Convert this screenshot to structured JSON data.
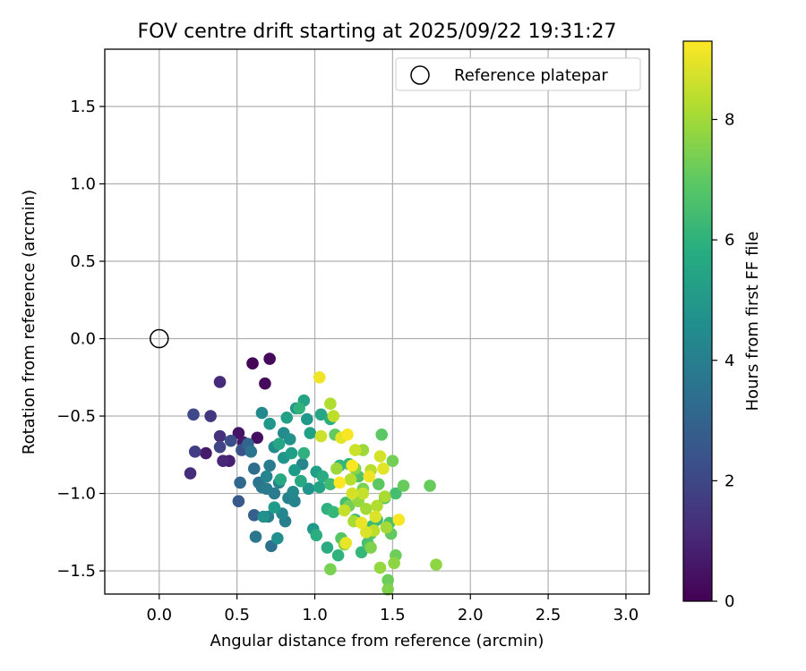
{
  "chart_data": {
    "type": "scatter",
    "title": "FOV centre drift starting at 2025/09/22 19:31:27",
    "xlabel": "Angular distance from reference (arcmin)",
    "ylabel": "Rotation from reference (arcmin)",
    "xlim": [
      -0.35,
      3.15
    ],
    "ylim": [
      -1.65,
      1.87
    ],
    "xticks": [
      "0.0",
      "0.5",
      "1.0",
      "1.5",
      "2.0",
      "2.5",
      "3.0"
    ],
    "yticks": [
      "−1.5",
      "−1.0",
      "−0.5",
      "0.0",
      "0.5",
      "1.0",
      "1.5"
    ],
    "grid": true,
    "legend": {
      "position": "top-right",
      "entries": [
        "Reference platepar"
      ]
    },
    "colorbar": {
      "label": "Hours from first FF file",
      "range": [
        0,
        9.3
      ],
      "ticks": [
        "0",
        "2",
        "4",
        "6",
        "8"
      ],
      "colormap": "viridis"
    },
    "reference_point": {
      "x": 0.0,
      "y": 0.0
    },
    "series": [
      {
        "points": [
          [
            0.6,
            -0.16,
            0.1
          ],
          [
            0.71,
            -0.13,
            0.2
          ],
          [
            0.68,
            -0.29,
            0.3
          ],
          [
            0.63,
            -0.64,
            0.4
          ],
          [
            0.51,
            -0.61,
            0.5
          ],
          [
            0.54,
            -0.67,
            0.6
          ],
          [
            0.3,
            -0.74,
            0.7
          ],
          [
            0.45,
            -0.79,
            0.8
          ],
          [
            0.58,
            -0.72,
            0.9
          ],
          [
            0.41,
            -0.79,
            1.0
          ],
          [
            0.39,
            -0.28,
            1.1
          ],
          [
            0.2,
            -0.87,
            1.2
          ],
          [
            0.39,
            -0.63,
            1.3
          ],
          [
            0.33,
            -0.5,
            1.5
          ],
          [
            0.23,
            -0.73,
            1.7
          ],
          [
            0.39,
            -0.7,
            1.9
          ],
          [
            0.22,
            -0.49,
            2.0
          ],
          [
            0.46,
            -0.66,
            2.2
          ],
          [
            0.53,
            -0.72,
            2.4
          ],
          [
            0.51,
            -1.05,
            2.6
          ],
          [
            0.61,
            -1.14,
            2.8
          ],
          [
            0.57,
            -0.68,
            3.0
          ],
          [
            0.52,
            -0.93,
            3.1
          ],
          [
            0.61,
            -0.84,
            3.3
          ],
          [
            0.72,
            -1.34,
            3.4
          ],
          [
            0.64,
            -0.93,
            3.5
          ],
          [
            0.59,
            -0.73,
            3.6
          ],
          [
            0.66,
            -0.96,
            3.7
          ],
          [
            0.62,
            -1.28,
            3.7
          ],
          [
            0.69,
            -0.97,
            3.8
          ],
          [
            0.71,
            -0.82,
            3.9
          ],
          [
            0.74,
            -1.0,
            3.9
          ],
          [
            0.81,
            -1.18,
            4.0
          ],
          [
            0.7,
            -1.15,
            4.0
          ],
          [
            0.77,
            -0.93,
            4.1
          ],
          [
            0.83,
            -1.03,
            4.1
          ],
          [
            0.69,
            -0.89,
            4.2
          ],
          [
            0.87,
            -1.05,
            4.2
          ],
          [
            0.79,
            -1.13,
            4.3
          ],
          [
            0.92,
            -0.81,
            4.3
          ],
          [
            0.86,
            -0.99,
            4.4
          ],
          [
            0.66,
            -0.48,
            4.4
          ],
          [
            0.74,
            -0.7,
            4.5
          ],
          [
            0.8,
            -0.61,
            4.5
          ],
          [
            0.76,
            -1.29,
            4.6
          ],
          [
            0.91,
            -0.92,
            4.6
          ],
          [
            0.67,
            -1.15,
            4.7
          ],
          [
            0.84,
            -0.65,
            4.7
          ],
          [
            0.96,
            -0.97,
            4.8
          ],
          [
            0.8,
            -0.77,
            4.8
          ],
          [
            0.71,
            -0.55,
            4.9
          ],
          [
            0.88,
            -0.45,
            4.9
          ],
          [
            0.99,
            -1.23,
            5.0
          ],
          [
            0.95,
            -0.52,
            5.0
          ],
          [
            0.74,
            -1.09,
            5.1
          ],
          [
            0.87,
            -0.85,
            5.1
          ],
          [
            1.01,
            -0.86,
            5.2
          ],
          [
            0.85,
            -0.74,
            5.2
          ],
          [
            0.97,
            -0.61,
            5.3
          ],
          [
            0.82,
            -0.51,
            5.3
          ],
          [
            0.93,
            -0.4,
            5.4
          ],
          [
            1.03,
            -0.96,
            5.4
          ],
          [
            0.77,
            -0.68,
            5.5
          ],
          [
            1.04,
            -0.49,
            5.5
          ],
          [
            0.91,
            -0.92,
            5.6
          ],
          [
            0.78,
            -0.91,
            5.6
          ],
          [
            1.08,
            -1.35,
            5.7
          ],
          [
            1.05,
            -0.89,
            5.7
          ],
          [
            1.1,
            -0.52,
            5.8
          ],
          [
            1.01,
            -1.27,
            5.8
          ],
          [
            0.93,
            -0.74,
            5.9
          ],
          [
            1.08,
            -1.1,
            5.9
          ],
          [
            1.15,
            -1.4,
            6.0
          ],
          [
            0.9,
            -0.45,
            6.0
          ],
          [
            1.16,
            -0.82,
            6.1
          ],
          [
            1.22,
            -0.81,
            6.1
          ],
          [
            1.12,
            -1.12,
            6.2
          ],
          [
            1.3,
            -1.38,
            6.2
          ],
          [
            1.37,
            -1.21,
            6.3
          ],
          [
            1.26,
            -1.17,
            6.3
          ],
          [
            1.4,
            -1.17,
            6.4
          ],
          [
            1.1,
            -0.94,
            6.4
          ],
          [
            1.2,
            -1.06,
            6.5
          ],
          [
            1.52,
            -1.0,
            6.5
          ],
          [
            1.48,
            -1.19,
            6.6
          ],
          [
            1.34,
            -1.32,
            6.6
          ],
          [
            1.28,
            -0.89,
            6.7
          ],
          [
            1.45,
            -1.03,
            6.7
          ],
          [
            1.17,
            -1.29,
            6.8
          ],
          [
            1.36,
            -1.26,
            6.8
          ],
          [
            1.43,
            -0.62,
            6.9
          ],
          [
            1.41,
            -0.94,
            6.9
          ],
          [
            1.13,
            -0.62,
            7.0
          ],
          [
            1.49,
            -1.26,
            7.0
          ],
          [
            1.74,
            -0.95,
            7.1
          ],
          [
            1.57,
            -0.95,
            7.1
          ],
          [
            1.47,
            -1.56,
            7.2
          ],
          [
            1.52,
            -1.4,
            7.2
          ],
          [
            1.5,
            -0.79,
            7.3
          ],
          [
            1.22,
            -1.08,
            7.3
          ],
          [
            1.1,
            -1.49,
            7.4
          ],
          [
            1.31,
            -0.97,
            7.4
          ],
          [
            1.36,
            -1.35,
            7.5
          ],
          [
            1.47,
            -1.62,
            7.5
          ],
          [
            1.19,
            -1.33,
            7.6
          ],
          [
            1.26,
            -0.84,
            7.6
          ],
          [
            1.51,
            -1.45,
            7.7
          ],
          [
            1.78,
            -1.46,
            7.7
          ],
          [
            1.42,
            -1.48,
            7.8
          ],
          [
            1.28,
            -1.05,
            7.8
          ],
          [
            1.31,
            -0.72,
            7.9
          ],
          [
            1.14,
            -0.84,
            7.9
          ],
          [
            1.46,
            -1.22,
            8.0
          ],
          [
            1.33,
            -1.1,
            8.0
          ],
          [
            1.45,
            -1.02,
            8.1
          ],
          [
            1.25,
            -1.18,
            8.1
          ],
          [
            1.4,
            -1.08,
            8.2
          ],
          [
            1.1,
            -0.42,
            8.2
          ],
          [
            1.23,
            -0.91,
            8.3
          ],
          [
            1.36,
            -0.85,
            8.3
          ],
          [
            1.12,
            -0.5,
            8.4
          ],
          [
            1.38,
            -1.24,
            8.4
          ],
          [
            1.19,
            -1.11,
            8.5
          ],
          [
            1.31,
            -1.0,
            8.5
          ],
          [
            1.26,
            -0.72,
            8.6
          ],
          [
            1.04,
            -0.63,
            8.6
          ],
          [
            1.42,
            -0.76,
            8.7
          ],
          [
            1.24,
            -1.0,
            8.7
          ],
          [
            1.33,
            -1.25,
            8.8
          ],
          [
            1.39,
            -1.15,
            8.8
          ],
          [
            1.44,
            -0.84,
            8.9
          ],
          [
            1.17,
            -0.64,
            8.9
          ],
          [
            1.2,
            -1.32,
            9.0
          ],
          [
            1.3,
            -1.19,
            9.0
          ],
          [
            1.35,
            -0.89,
            9.1
          ],
          [
            1.03,
            -0.25,
            9.1
          ],
          [
            1.21,
            -0.62,
            9.2
          ],
          [
            1.54,
            -1.17,
            9.2
          ],
          [
            1.16,
            -0.93,
            9.3
          ],
          [
            1.24,
            -0.82,
            9.3
          ]
        ]
      }
    ]
  }
}
